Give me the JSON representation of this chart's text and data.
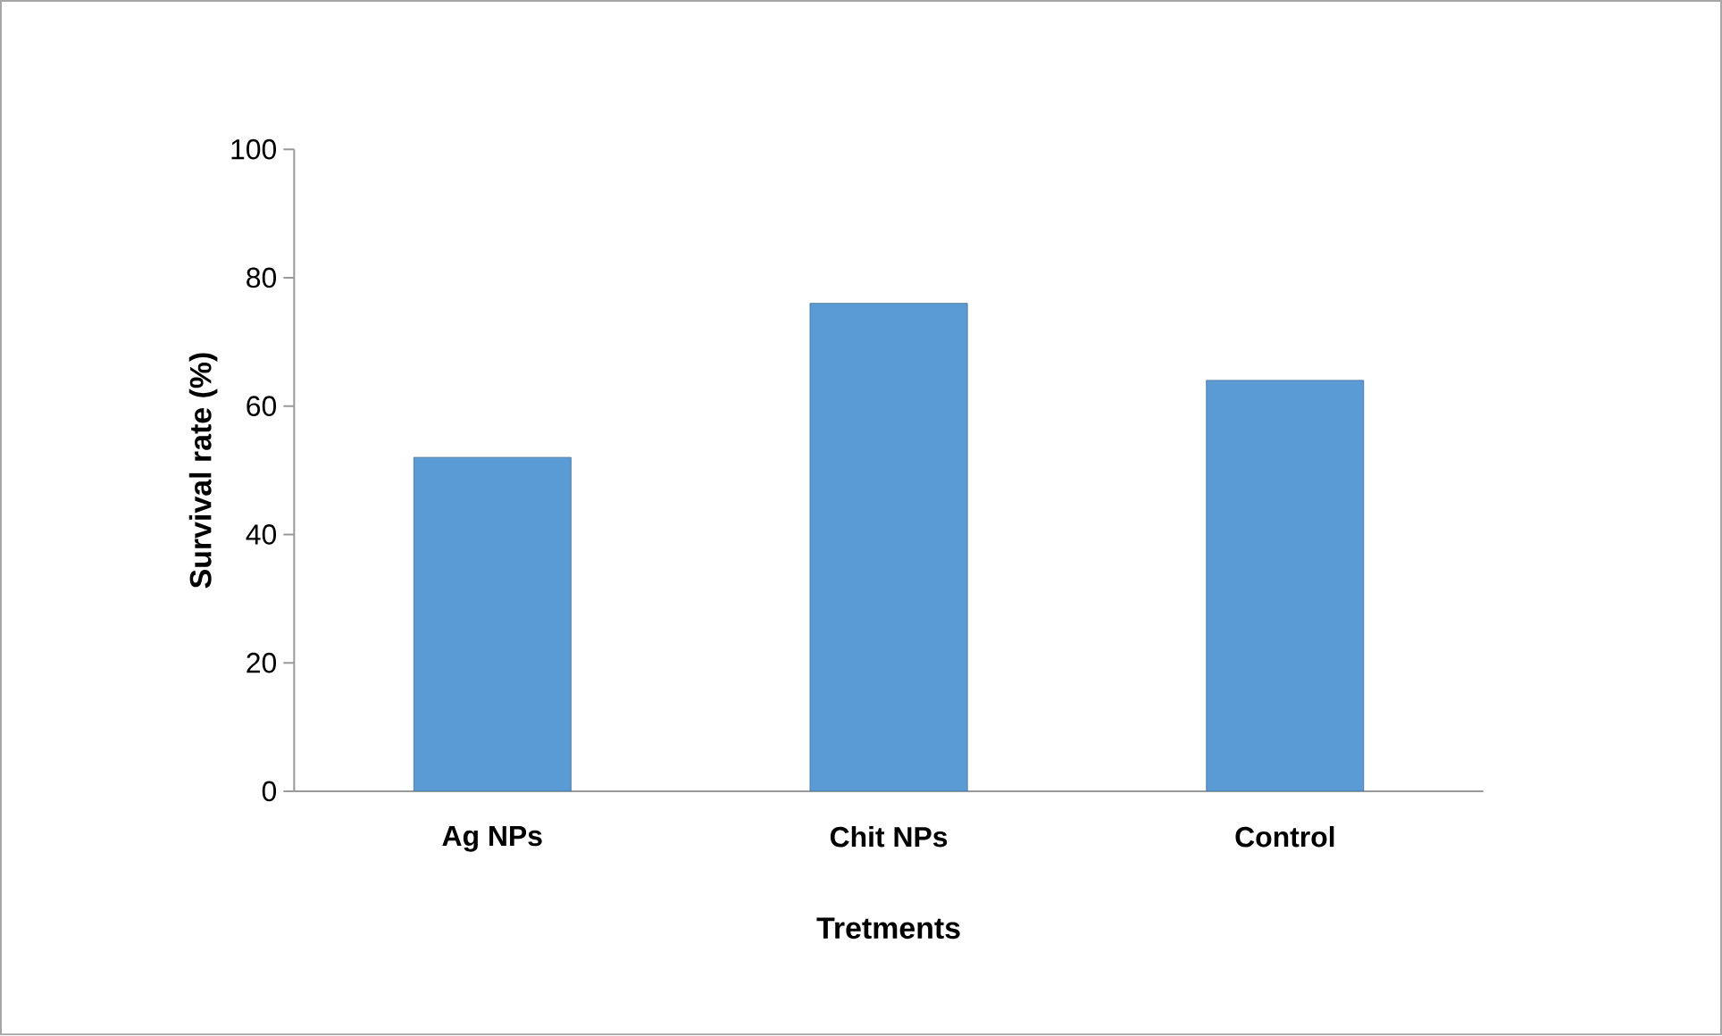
{
  "chart_data": {
    "type": "bar",
    "xlabel": "Tretments",
    "ylabel": "Survival rate (%)",
    "categories": [
      "Ag NPs",
      "Chit NPs",
      "Control"
    ],
    "values": [
      52,
      76,
      64
    ],
    "color": "#5b9bd5",
    "ylim": [
      0,
      100
    ],
    "yticks": [
      0,
      20,
      40,
      60,
      80,
      100
    ],
    "grid": false
  }
}
